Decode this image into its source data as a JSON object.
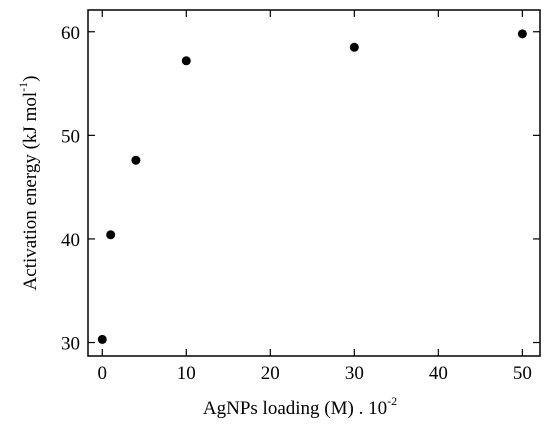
{
  "chart_data": {
    "type": "scatter",
    "xlabel": "AgNPs loading (M) . 10",
    "xlabel_sup": "-2",
    "ylabel": "Activation energy (kJ mol",
    "ylabel_sup": "-1",
    "ylabel_end": ")",
    "x": [
      0,
      1,
      4,
      10,
      30,
      50
    ],
    "series": [
      {
        "color": "#000000",
        "values": [
          30.3,
          40.4,
          47.6,
          57.2,
          58.5,
          59.8
        ]
      }
    ],
    "xlim": [
      -1.7,
      52.1
    ],
    "xticks": [
      0,
      10,
      20,
      30,
      40,
      50
    ],
    "ylim": [
      28.7,
      62.1
    ],
    "yticks": [
      30,
      40,
      50,
      60
    ]
  }
}
